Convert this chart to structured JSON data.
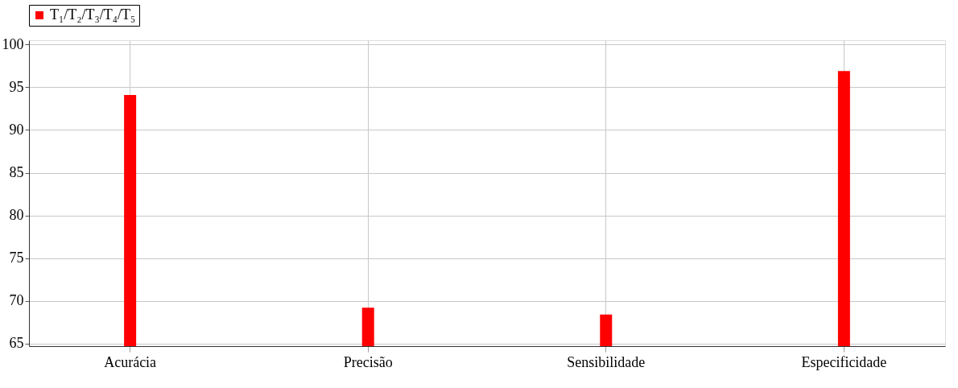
{
  "chart_data": {
    "type": "bar",
    "categories": [
      "Acurácia",
      "Precisão",
      "Sensibilidade",
      "Especificidade"
    ],
    "series": [
      {
        "name": "T₁/T₂/T₃/T₄/T₅",
        "color": "#ff0000",
        "values": [
          94.1,
          69.2,
          68.4,
          96.9
        ]
      }
    ],
    "ylim": [
      64.7,
      100.5
    ],
    "yticks": [
      65,
      70,
      75,
      80,
      85,
      90,
      95,
      100
    ],
    "grid": true,
    "legend": "top"
  }
}
